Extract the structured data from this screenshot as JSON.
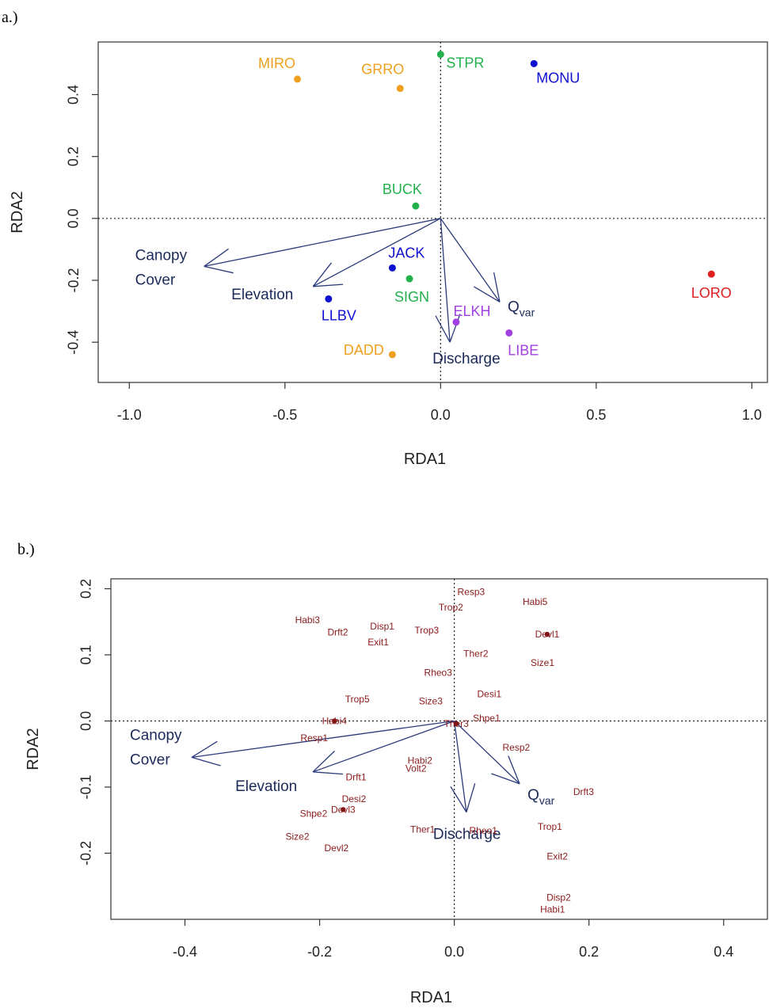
{
  "chart_data": [
    {
      "type": "scatter",
      "panel_label": "a.)",
      "xlabel": "RDA1",
      "ylabel": "RDA2",
      "xlim": [
        -1.1,
        1.05
      ],
      "ylim": [
        -0.53,
        0.57
      ],
      "xticks": [
        -1.0,
        -0.5,
        0.0,
        0.5,
        1.0
      ],
      "xtick_labels": [
        "-1.0",
        "-0.5",
        "0.0",
        "0.5",
        "1.0"
      ],
      "yticks": [
        -0.4,
        -0.2,
        0.0,
        0.2,
        0.4
      ],
      "ytick_labels": [
        "-0.4",
        "-0.2",
        "0.0",
        "0.2",
        "0.4"
      ],
      "grid": false,
      "reference_lines": "dotted lines at x = 0 and y = 0",
      "points": [
        {
          "label": "MIRO",
          "x": -0.46,
          "y": 0.45,
          "color": "#f0a020"
        },
        {
          "label": "GRRO",
          "x": -0.13,
          "y": 0.42,
          "color": "#f0a020"
        },
        {
          "label": "STPR",
          "x": 0.0,
          "y": 0.53,
          "color": "#22b14c"
        },
        {
          "label": "MONU",
          "x": 0.3,
          "y": 0.5,
          "color": "#1010d0"
        },
        {
          "label": "BUCK",
          "x": -0.08,
          "y": 0.04,
          "color": "#22b14c"
        },
        {
          "label": "JACK",
          "x": -0.155,
          "y": -0.16,
          "color": "#1010d0"
        },
        {
          "label": "SIGN",
          "x": -0.1,
          "y": -0.195,
          "color": "#22b14c"
        },
        {
          "label": "LLBV",
          "x": -0.36,
          "y": -0.26,
          "color": "#1010d0"
        },
        {
          "label": "ELKH",
          "x": 0.05,
          "y": -0.335,
          "color": "#a040e0"
        },
        {
          "label": "LIBE",
          "x": 0.22,
          "y": -0.37,
          "color": "#a040e0"
        },
        {
          "label": "DADD",
          "x": -0.155,
          "y": -0.44,
          "color": "#f0a020"
        },
        {
          "label": "LORO",
          "x": 0.87,
          "y": -0.18,
          "color": "#e02020"
        }
      ],
      "vectors": [
        {
          "label": "Canopy Cover",
          "label_lines": [
            "Canopy",
            "Cover"
          ],
          "x": -0.76,
          "y": -0.155
        },
        {
          "label": "Elevation",
          "x": -0.41,
          "y": -0.22
        },
        {
          "label": "Q",
          "subscript": "var",
          "x": 0.19,
          "y": -0.27
        },
        {
          "label": "Discharge",
          "x": 0.03,
          "y": -0.4
        }
      ]
    },
    {
      "type": "scatter",
      "panel_label": "b.)",
      "xlabel": "RDA1",
      "ylabel": "RDA2",
      "xlim": [
        -0.51,
        0.465
      ],
      "ylim": [
        -0.3,
        0.215
      ],
      "xticks": [
        -0.4,
        -0.2,
        0.0,
        0.2,
        0.4
      ],
      "xtick_labels": [
        "-0.4",
        "-0.2",
        "0.0",
        "0.2",
        "0.4"
      ],
      "yticks": [
        -0.2,
        -0.1,
        0.0,
        0.1,
        0.2
      ],
      "ytick_labels": [
        "-0.2",
        "-0.1",
        "0.0",
        "0.1",
        "0.2"
      ],
      "grid": false,
      "reference_lines": "dotted lines at x = 0 and y = 0",
      "points": [
        {
          "label": "Resp3",
          "x": 0.025,
          "y": 0.195
        },
        {
          "label": "Trop2",
          "x": -0.005,
          "y": 0.172
        },
        {
          "label": "Habi5",
          "x": 0.12,
          "y": 0.18
        },
        {
          "label": "Habi3",
          "x": -0.218,
          "y": 0.153
        },
        {
          "label": "Drft2",
          "x": -0.173,
          "y": 0.134
        },
        {
          "label": "Disp1",
          "x": -0.107,
          "y": 0.143
        },
        {
          "label": "Exit1",
          "x": -0.113,
          "y": 0.119
        },
        {
          "label": "Trop3",
          "x": -0.041,
          "y": 0.137
        },
        {
          "label": "Devl1",
          "x": 0.138,
          "y": 0.131,
          "marker": true
        },
        {
          "label": "Ther2",
          "x": 0.032,
          "y": 0.102
        },
        {
          "label": "Size1",
          "x": 0.131,
          "y": 0.088
        },
        {
          "label": "Rheo3",
          "x": -0.024,
          "y": 0.073
        },
        {
          "label": "Desi1",
          "x": 0.052,
          "y": 0.041
        },
        {
          "label": "Trop5",
          "x": -0.144,
          "y": 0.033
        },
        {
          "label": "Size3",
          "x": -0.035,
          "y": 0.03
        },
        {
          "label": "Habi4",
          "x": -0.178,
          "y": 0.0,
          "marker": true
        },
        {
          "label": "Shpe1",
          "x": 0.048,
          "y": 0.004
        },
        {
          "label": "Ther3",
          "x": 0.003,
          "y": -0.004,
          "marker": true
        },
        {
          "label": "Resp1",
          "x": -0.208,
          "y": -0.026
        },
        {
          "label": "Resp2",
          "x": 0.092,
          "y": -0.04
        },
        {
          "label": "Habi2",
          "x": -0.051,
          "y": -0.06
        },
        {
          "label": "Volt2",
          "x": -0.057,
          "y": -0.072
        },
        {
          "label": "Drft1",
          "x": -0.146,
          "y": -0.085
        },
        {
          "label": "Drft3",
          "x": 0.192,
          "y": -0.107
        },
        {
          "label": "Desi2",
          "x": -0.149,
          "y": -0.118
        },
        {
          "label": "Devl3",
          "x": -0.165,
          "y": -0.134,
          "marker": true
        },
        {
          "label": "Shpe2",
          "x": -0.209,
          "y": -0.14
        },
        {
          "label": "Ther1",
          "x": -0.047,
          "y": -0.164
        },
        {
          "label": "Rheo1",
          "x": 0.043,
          "y": -0.166
        },
        {
          "label": "Trop1",
          "x": 0.142,
          "y": -0.16
        },
        {
          "label": "Size2",
          "x": -0.233,
          "y": -0.175
        },
        {
          "label": "Devl2",
          "x": -0.175,
          "y": -0.192
        },
        {
          "label": "Exit2",
          "x": 0.153,
          "y": -0.205
        },
        {
          "label": "Disp2",
          "x": 0.155,
          "y": -0.267
        },
        {
          "label": "Habi1",
          "x": 0.146,
          "y": -0.285
        }
      ],
      "vectors": [
        {
          "label": "Canopy Cover",
          "label_lines": [
            "Canopy",
            "Cover"
          ],
          "x": -0.39,
          "y": -0.055
        },
        {
          "label": "Elevation",
          "x": -0.21,
          "y": -0.077
        },
        {
          "label": "Q",
          "subscript": "var",
          "x": 0.097,
          "y": -0.095
        },
        {
          "label": "Discharge",
          "x": 0.018,
          "y": -0.138
        }
      ]
    }
  ],
  "colors": {
    "vector": "#2b3a7a",
    "trait_label": "#8b1a1a",
    "trait_marker": "#7a1010"
  }
}
